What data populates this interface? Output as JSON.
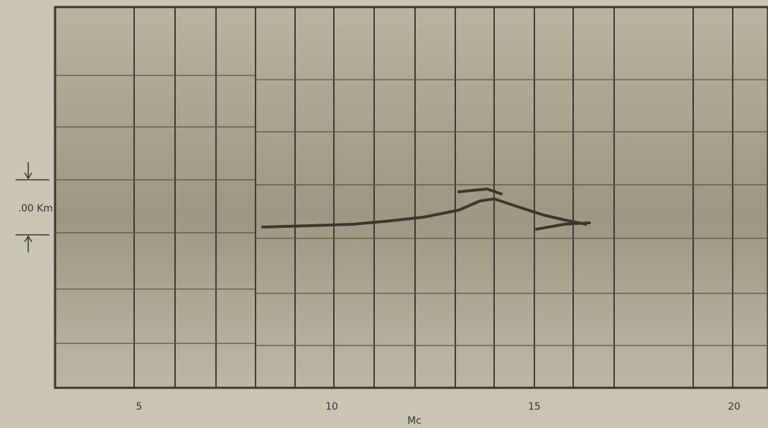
{
  "x_axis": {
    "labels": [
      "5",
      "10",
      "15",
      "20"
    ],
    "title": "Mc"
  },
  "height_marker": {
    "label": ".00 Km"
  }
}
